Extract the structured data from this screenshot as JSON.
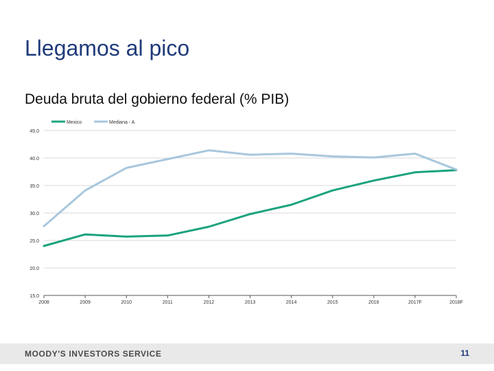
{
  "slide": {
    "title": "Llegamos al pico",
    "chart_title": "Deuda bruta del gobierno federal (% PIB)"
  },
  "footer": {
    "brand": "MOODY'S INVESTORS SERVICE",
    "page_number": "11"
  },
  "colors": {
    "title": "#1f3b7a",
    "series_mexico": "#1aa37e",
    "series_mediana": "#a8c7dd",
    "grid": "#d9d9d9",
    "footer_bg": "#e9e9ea"
  },
  "chart_data": {
    "type": "line",
    "title": "Deuda bruta del gobierno federal (% PIB)",
    "xlabel": "",
    "ylabel": "",
    "categories": [
      "2008",
      "2009",
      "2010",
      "2011",
      "2012",
      "2013",
      "2014",
      "2015",
      "2016",
      "2017F",
      "2018F"
    ],
    "ylim": [
      15,
      45
    ],
    "yticks": [
      "45.0",
      "40.0",
      "35.0",
      "30.0",
      "25.0",
      "20.0",
      "15.0"
    ],
    "grid": true,
    "legend_position": "top",
    "series": [
      {
        "name": "Mexico",
        "color": "#1aa37e",
        "values": [
          24.0,
          26.1,
          25.7,
          25.9,
          27.5,
          29.8,
          31.5,
          34.1,
          35.9,
          37.4,
          37.8
        ]
      },
      {
        "name": "Mediana - A",
        "color": "#a8c7dd",
        "values": [
          27.6,
          34.1,
          38.2,
          39.8,
          41.4,
          40.6,
          40.8,
          40.3,
          40.1,
          40.8,
          37.9
        ]
      }
    ]
  }
}
